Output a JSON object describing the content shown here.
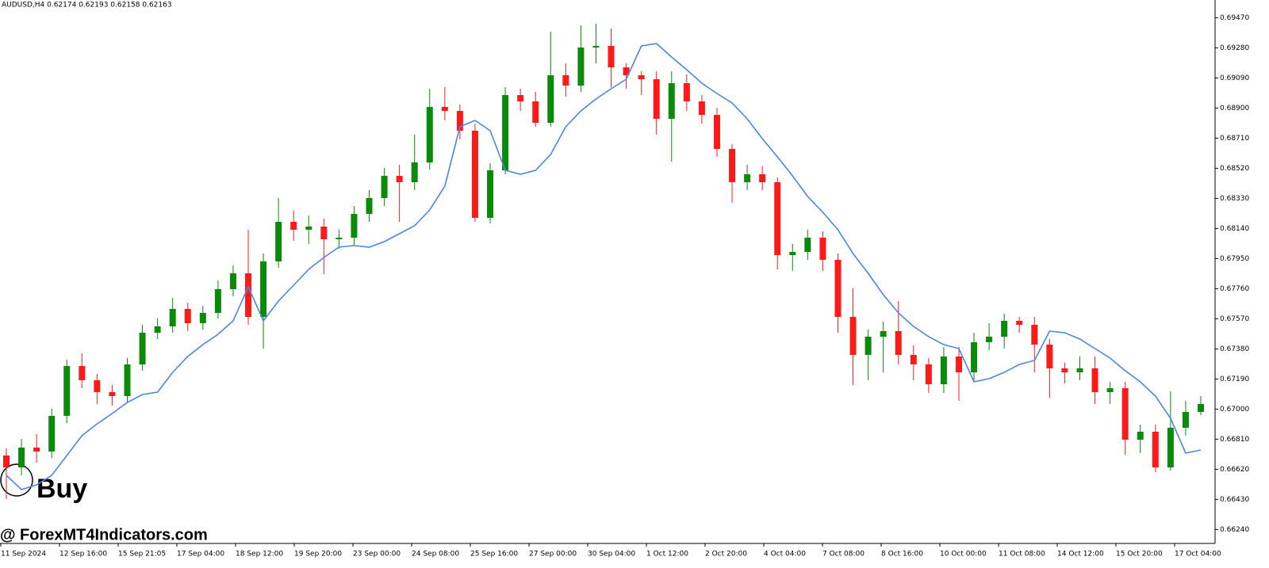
{
  "chart_data": {
    "type": "candlestick",
    "title": "AUDUSD,H4  0.62174 0.62193 0.62158 0.62163",
    "annotations": {
      "signal": "Buy",
      "watermark": "@ ForexMT4Indicators.com"
    },
    "colors": {
      "up": "#0b8a0b",
      "down": "#ff1a1a"
    },
    "ylim": [
      0.66157,
      0.69582
    ],
    "yticks": [
      {
        "value": 0.6947,
        "label": "0.69470"
      },
      {
        "value": 0.6928,
        "label": "0.69280"
      },
      {
        "value": 0.6909,
        "label": "0.69090"
      },
      {
        "value": 0.689,
        "label": "0.68900"
      },
      {
        "value": 0.6871,
        "label": "0.68710"
      },
      {
        "value": 0.6852,
        "label": "0.68520"
      },
      {
        "value": 0.6833,
        "label": "0.68330"
      },
      {
        "value": 0.6814,
        "label": "0.68140"
      },
      {
        "value": 0.6795,
        "label": "0.67950"
      },
      {
        "value": 0.6776,
        "label": "0.67760"
      },
      {
        "value": 0.6757,
        "label": "0.67570"
      },
      {
        "value": 0.6738,
        "label": "0.67380"
      },
      {
        "value": 0.6719,
        "label": "0.67190"
      },
      {
        "value": 0.67,
        "label": "0.67000"
      },
      {
        "value": 0.6681,
        "label": "0.66810"
      },
      {
        "value": 0.6662,
        "label": "0.66620"
      },
      {
        "value": 0.6643,
        "label": "0.66430"
      },
      {
        "value": 0.6624,
        "label": "0.66240"
      }
    ],
    "xlabels": [
      "11 Sep 2024",
      "12 Sep 16:00",
      "15 Sep 21:05",
      "17 Sep 04:00",
      "18 Sep 12:00",
      "19 Sep 20:00",
      "23 Sep 00:00",
      "24 Sep 08:00",
      "25 Sep 16:00",
      "27 Sep 00:00",
      "30 Sep 04:00",
      "1 Oct 12:00",
      "2 Oct 20:00",
      "4 Oct 04:00",
      "7 Oct 08:00",
      "8 Oct 16:00",
      "10 Oct 00:00",
      "11 Oct 08:00",
      "14 Oct 12:00",
      "15 Oct 20:00",
      "17 Oct 04:00"
    ],
    "candles": [
      [
        0.66707,
        0.66752,
        0.66432,
        0.66632
      ],
      [
        0.66632,
        0.66812,
        0.66582,
        0.66757
      ],
      [
        0.66757,
        0.66842,
        0.66662,
        0.66732
      ],
      [
        0.66732,
        0.67002,
        0.66692,
        0.66957
      ],
      [
        0.66957,
        0.67312,
        0.66912,
        0.67272
      ],
      [
        0.67272,
        0.67352,
        0.67132,
        0.67182
      ],
      [
        0.67182,
        0.67222,
        0.67032,
        0.67107
      ],
      [
        0.67107,
        0.67152,
        0.67022,
        0.67082
      ],
      [
        0.67082,
        0.67322,
        0.67042,
        0.67282
      ],
      [
        0.67282,
        0.67532,
        0.67242,
        0.67482
      ],
      [
        0.67482,
        0.67572,
        0.67442,
        0.67522
      ],
      [
        0.67522,
        0.67702,
        0.67482,
        0.67632
      ],
      [
        0.67632,
        0.67672,
        0.67492,
        0.67542
      ],
      [
        0.67542,
        0.67652,
        0.67502,
        0.67607
      ],
      [
        0.67607,
        0.67812,
        0.67572,
        0.67757
      ],
      [
        0.67757,
        0.67907,
        0.67712,
        0.67857
      ],
      [
        0.67857,
        0.68132,
        0.67532,
        0.67582
      ],
      [
        0.67582,
        0.67982,
        0.67382,
        0.67932
      ],
      [
        0.67932,
        0.68332,
        0.67892,
        0.68182
      ],
      [
        0.68182,
        0.68252,
        0.68062,
        0.68132
      ],
      [
        0.68132,
        0.68222,
        0.68042,
        0.68152
      ],
      [
        0.68152,
        0.68202,
        0.67852,
        0.68072
      ],
      [
        0.68072,
        0.68132,
        0.68012,
        0.68082
      ],
      [
        0.68082,
        0.68282,
        0.68032,
        0.68232
      ],
      [
        0.68232,
        0.68382,
        0.68182,
        0.68332
      ],
      [
        0.68332,
        0.68522,
        0.68282,
        0.68472
      ],
      [
        0.68472,
        0.68542,
        0.68182,
        0.68432
      ],
      [
        0.68432,
        0.68732,
        0.68382,
        0.68557
      ],
      [
        0.68557,
        0.69022,
        0.68512,
        0.68907
      ],
      [
        0.68907,
        0.69032,
        0.68822,
        0.68882
      ],
      [
        0.68882,
        0.68922,
        0.68702,
        0.68757
      ],
      [
        0.68757,
        0.68802,
        0.68182,
        0.68207
      ],
      [
        0.68207,
        0.68552,
        0.68172,
        0.68507
      ],
      [
        0.68507,
        0.69032,
        0.68482,
        0.68982
      ],
      [
        0.68982,
        0.69022,
        0.68882,
        0.68942
      ],
      [
        0.68942,
        0.69002,
        0.68782,
        0.68807
      ],
      [
        0.68807,
        0.69382,
        0.68782,
        0.69107
      ],
      [
        0.69107,
        0.69182,
        0.68972,
        0.69042
      ],
      [
        0.69042,
        0.69422,
        0.69002,
        0.69282
      ],
      [
        0.69282,
        0.69432,
        0.69182,
        0.69292
      ],
      [
        0.69292,
        0.69402,
        0.69032,
        0.69157
      ],
      [
        0.69157,
        0.69182,
        0.69022,
        0.69107
      ],
      [
        0.69107,
        0.69132,
        0.68982,
        0.69082
      ],
      [
        0.69082,
        0.69132,
        0.68732,
        0.68832
      ],
      [
        0.68832,
        0.69132,
        0.68562,
        0.69057
      ],
      [
        0.69057,
        0.69112,
        0.68882,
        0.68942
      ],
      [
        0.68942,
        0.68982,
        0.68802,
        0.68857
      ],
      [
        0.68857,
        0.68902,
        0.68592,
        0.68642
      ],
      [
        0.68642,
        0.68672,
        0.68302,
        0.68432
      ],
      [
        0.68432,
        0.68542,
        0.68382,
        0.68482
      ],
      [
        0.68482,
        0.68532,
        0.68382,
        0.68432
      ],
      [
        0.68432,
        0.68462,
        0.67882,
        0.67972
      ],
      [
        0.67972,
        0.68042,
        0.67872,
        0.67992
      ],
      [
        0.67992,
        0.68132,
        0.67942,
        0.68082
      ],
      [
        0.68082,
        0.68122,
        0.67872,
        0.67942
      ],
      [
        0.67942,
        0.67982,
        0.67482,
        0.67582
      ],
      [
        0.67582,
        0.67762,
        0.67152,
        0.67342
      ],
      [
        0.67342,
        0.67502,
        0.67182,
        0.67457
      ],
      [
        0.67457,
        0.67552,
        0.67232,
        0.67492
      ],
      [
        0.67492,
        0.67682,
        0.67282,
        0.67342
      ],
      [
        0.67342,
        0.67402,
        0.67182,
        0.67282
      ],
      [
        0.67282,
        0.67322,
        0.67102,
        0.67157
      ],
      [
        0.67157,
        0.67392,
        0.67102,
        0.67332
      ],
      [
        0.67332,
        0.67392,
        0.67052,
        0.67232
      ],
      [
        0.67232,
        0.67482,
        0.67172,
        0.67422
      ],
      [
        0.67422,
        0.67542,
        0.67372,
        0.67457
      ],
      [
        0.67457,
        0.67602,
        0.67382,
        0.67557
      ],
      [
        0.67557,
        0.67582,
        0.67482,
        0.67532
      ],
      [
        0.67532,
        0.67582,
        0.67232,
        0.67407
      ],
      [
        0.67407,
        0.67442,
        0.67072,
        0.67257
      ],
      [
        0.67257,
        0.67292,
        0.67162,
        0.67232
      ],
      [
        0.67232,
        0.67332,
        0.67182,
        0.67257
      ],
      [
        0.67257,
        0.67332,
        0.67032,
        0.67107
      ],
      [
        0.67107,
        0.67172,
        0.67032,
        0.67132
      ],
      [
        0.67132,
        0.67172,
        0.66712,
        0.66807
      ],
      [
        0.66807,
        0.66902,
        0.66722,
        0.66857
      ],
      [
        0.66857,
        0.66902,
        0.66602,
        0.66632
      ],
      [
        0.66632,
        0.67112,
        0.66612,
        0.66882
      ],
      [
        0.66882,
        0.67052,
        0.66832,
        0.66982
      ],
      [
        0.66982,
        0.67082,
        0.66962,
        0.67032
      ]
    ],
    "ma": {
      "color": "#4a86e8",
      "values": [
        0.66582,
        0.66492,
        0.66522,
        0.66582,
        0.66707,
        0.66832,
        0.66907,
        0.66972,
        0.67042,
        0.67092,
        0.67107,
        0.67232,
        0.67332,
        0.67407,
        0.67472,
        0.67557,
        0.67772,
        0.67557,
        0.67682,
        0.67782,
        0.67882,
        0.67957,
        0.68022,
        0.68032,
        0.68022,
        0.68057,
        0.68107,
        0.68157,
        0.68257,
        0.68407,
        0.68782,
        0.68822,
        0.68757,
        0.68507,
        0.68482,
        0.68507,
        0.68607,
        0.68782,
        0.68882,
        0.68957,
        0.69022,
        0.69082,
        0.69292,
        0.69307,
        0.69222,
        0.69142,
        0.69057,
        0.68992,
        0.68932,
        0.68832,
        0.68707,
        0.68592,
        0.68472,
        0.68342,
        0.68242,
        0.68132,
        0.67982,
        0.67857,
        0.67722,
        0.67607,
        0.67522,
        0.67457,
        0.67407,
        0.67382,
        0.67172,
        0.67192,
        0.67232,
        0.67282,
        0.67307,
        0.67492,
        0.67482,
        0.67442,
        0.67382,
        0.67322,
        0.67242,
        0.67172,
        0.67082,
        0.66942,
        0.66722,
        0.66742
      ]
    }
  }
}
